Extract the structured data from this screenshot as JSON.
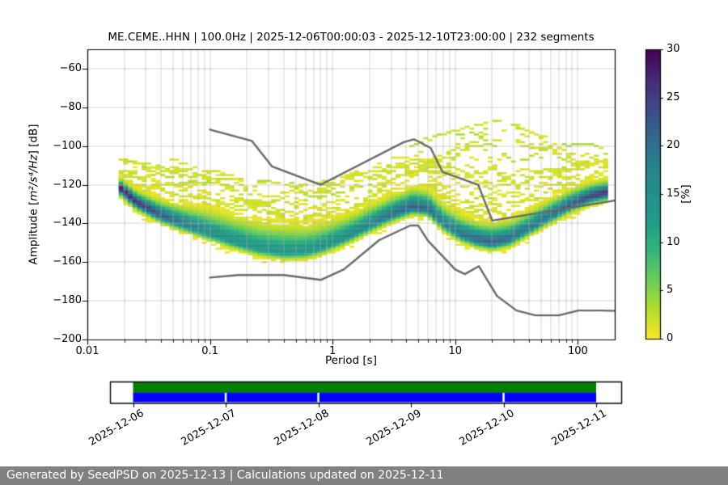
{
  "header": {
    "title": "ME.CEME..HHN | 100.0Hz | 2025-12-06T00:00:03 - 2025-12-10T23:00:00 | 232 segments"
  },
  "footer": {
    "text": "Generated by SeedPSD on 2025-12-13 | Calculations updated on 2025-12-11",
    "bg": "#808080",
    "fg": "#ffffff"
  },
  "chart_data": {
    "type": "heatmap",
    "title": "ME.CEME..HHN | 100.0Hz | 2025-12-06T00:00:03 - 2025-12-10T23:00:00 | 232 segments",
    "xlabel": "Period [s]",
    "ylabel": "Amplitude [m²/s⁴/Hz] [dB]",
    "ylabel_parts": {
      "prefix": "Amplitude [",
      "math": "m²/s⁴/Hz",
      "suffix": "] [dB]"
    },
    "x_axis": {
      "scale": "log",
      "min": 0.01,
      "max": 200,
      "major_ticks": [
        0.01,
        0.1,
        1,
        10,
        100
      ],
      "major_labels": [
        "0.01",
        "0.1",
        "1",
        "10",
        "100"
      ]
    },
    "y_axis": {
      "min": -200,
      "max": -50,
      "major_ticks": [
        -200,
        -180,
        -160,
        -140,
        -120,
        -100,
        -80,
        -60
      ],
      "major_labels": [
        "−200",
        "−180",
        "−160",
        "−140",
        "−120",
        "−100",
        "−80",
        "−60"
      ]
    },
    "grid": {
      "on": true,
      "color": "#b0b0b0"
    },
    "colorbar": {
      "label": "[%]",
      "min": 0,
      "max": 30,
      "ticks": [
        0,
        5,
        10,
        15,
        20,
        25,
        30
      ],
      "tick_labels": [
        "0",
        "5",
        "10",
        "15",
        "20",
        "25",
        "30"
      ],
      "colormap": "viridis_r",
      "viridis_stops": [
        [
          0.0,
          "#440154"
        ],
        [
          0.1,
          "#482878"
        ],
        [
          0.2,
          "#3e4989"
        ],
        [
          0.3,
          "#31688e"
        ],
        [
          0.4,
          "#26828e"
        ],
        [
          0.5,
          "#21918c"
        ],
        [
          0.6,
          "#1f9e89"
        ],
        [
          0.7,
          "#35b779"
        ],
        [
          0.8,
          "#6ece58"
        ],
        [
          0.9,
          "#b5de2b"
        ],
        [
          1.0,
          "#fde725"
        ]
      ]
    },
    "noise_models": {
      "color": "#696969",
      "nhnm": [
        [
          0.1,
          -91.5
        ],
        [
          0.22,
          -97.4
        ],
        [
          0.32,
          -110.5
        ],
        [
          0.8,
          -120.0
        ],
        [
          3.8,
          -98.0
        ],
        [
          4.6,
          -96.5
        ],
        [
          6.3,
          -101.0
        ],
        [
          7.9,
          -113.5
        ],
        [
          15.4,
          -120.0
        ],
        [
          20.0,
          -138.5
        ],
        [
          200,
          -128.2
        ]
      ],
      "nlnm": [
        [
          0.1,
          -168.0
        ],
        [
          0.17,
          -166.7
        ],
        [
          0.4,
          -166.7
        ],
        [
          0.8,
          -169.2
        ],
        [
          1.24,
          -163.7
        ],
        [
          2.4,
          -148.6
        ],
        [
          4.3,
          -141.1
        ],
        [
          5.0,
          -141.1
        ],
        [
          6.0,
          -149.0
        ],
        [
          10.0,
          -163.8
        ],
        [
          12.0,
          -166.2
        ],
        [
          15.6,
          -162.1
        ],
        [
          21.9,
          -177.5
        ],
        [
          31.6,
          -185.0
        ],
        [
          45.0,
          -187.5
        ],
        [
          70.0,
          -187.5
        ],
        [
          101.0,
          -185.0
        ],
        [
          154.0,
          -185.0
        ],
        [
          200,
          -185.2
        ]
      ]
    },
    "histogram": {
      "period_range": [
        0.018,
        190
      ],
      "period_step_octaves": 0.125,
      "db_bin_width": 1,
      "mode_curve": [
        [
          0.018,
          -121
        ],
        [
          0.025,
          -129
        ],
        [
          0.04,
          -136
        ],
        [
          0.065,
          -141
        ],
        [
          0.1,
          -145
        ],
        [
          0.15,
          -149
        ],
        [
          0.25,
          -153
        ],
        [
          0.4,
          -155
        ],
        [
          0.6,
          -154.5
        ],
        [
          0.8,
          -152.5
        ],
        [
          1.2,
          -148
        ],
        [
          2,
          -141
        ],
        [
          3,
          -135.5
        ],
        [
          4.5,
          -131.5
        ],
        [
          6,
          -132.5
        ],
        [
          8,
          -140
        ],
        [
          11,
          -145.5
        ],
        [
          15,
          -148.5
        ],
        [
          20,
          -150
        ],
        [
          28,
          -148
        ],
        [
          40,
          -142.5
        ],
        [
          60,
          -136
        ],
        [
          90,
          -130
        ],
        [
          130,
          -126
        ],
        [
          190,
          -123.5
        ]
      ],
      "peak_percent": [
        [
          0.018,
          29
        ],
        [
          0.03,
          25
        ],
        [
          0.06,
          19
        ],
        [
          0.12,
          15
        ],
        [
          0.3,
          13.5
        ],
        [
          0.7,
          14
        ],
        [
          1.5,
          16
        ],
        [
          3,
          20
        ],
        [
          5,
          22
        ],
        [
          8,
          18
        ],
        [
          12,
          20
        ],
        [
          20,
          22
        ],
        [
          35,
          19
        ],
        [
          60,
          20
        ],
        [
          100,
          23
        ],
        [
          140,
          25
        ],
        [
          190,
          27
        ]
      ],
      "sigma_above": [
        [
          0.018,
          2.2
        ],
        [
          0.05,
          4
        ],
        [
          0.12,
          6
        ],
        [
          0.4,
          7
        ],
        [
          0.8,
          6
        ],
        [
          1.5,
          5
        ],
        [
          3,
          4.5
        ],
        [
          6,
          4.5
        ],
        [
          12,
          4.5
        ],
        [
          25,
          4.5
        ],
        [
          50,
          4
        ],
        [
          100,
          3.5
        ],
        [
          190,
          3
        ]
      ],
      "sigma_below": 2.0,
      "scatter_envelope": [
        [
          0.018,
          -107
        ],
        [
          0.03,
          -110
        ],
        [
          0.05,
          -107
        ],
        [
          0.08,
          -112
        ],
        [
          0.15,
          -114
        ],
        [
          0.3,
          -119
        ],
        [
          0.6,
          -121
        ],
        [
          1,
          -118
        ],
        [
          2,
          -112
        ],
        [
          3.5,
          -103
        ],
        [
          6,
          -96
        ],
        [
          10,
          -92
        ],
        [
          15,
          -89
        ],
        [
          22,
          -87
        ],
        [
          30,
          -89
        ],
        [
          45,
          -94
        ],
        [
          70,
          -98
        ],
        [
          110,
          -99
        ],
        [
          150,
          -100
        ],
        [
          190,
          -104
        ]
      ],
      "scatter_lines": 34,
      "seed": 42
    }
  },
  "timeline": {
    "labels": [
      "2025-12-06",
      "2025-12-07",
      "2025-12-08",
      "2025-12-09",
      "2025-12-10",
      "2025-12-11"
    ],
    "coverage_color": "#008000",
    "segments_color": "#0000ff",
    "gap_at_labels": [
      1,
      2,
      4
    ]
  }
}
